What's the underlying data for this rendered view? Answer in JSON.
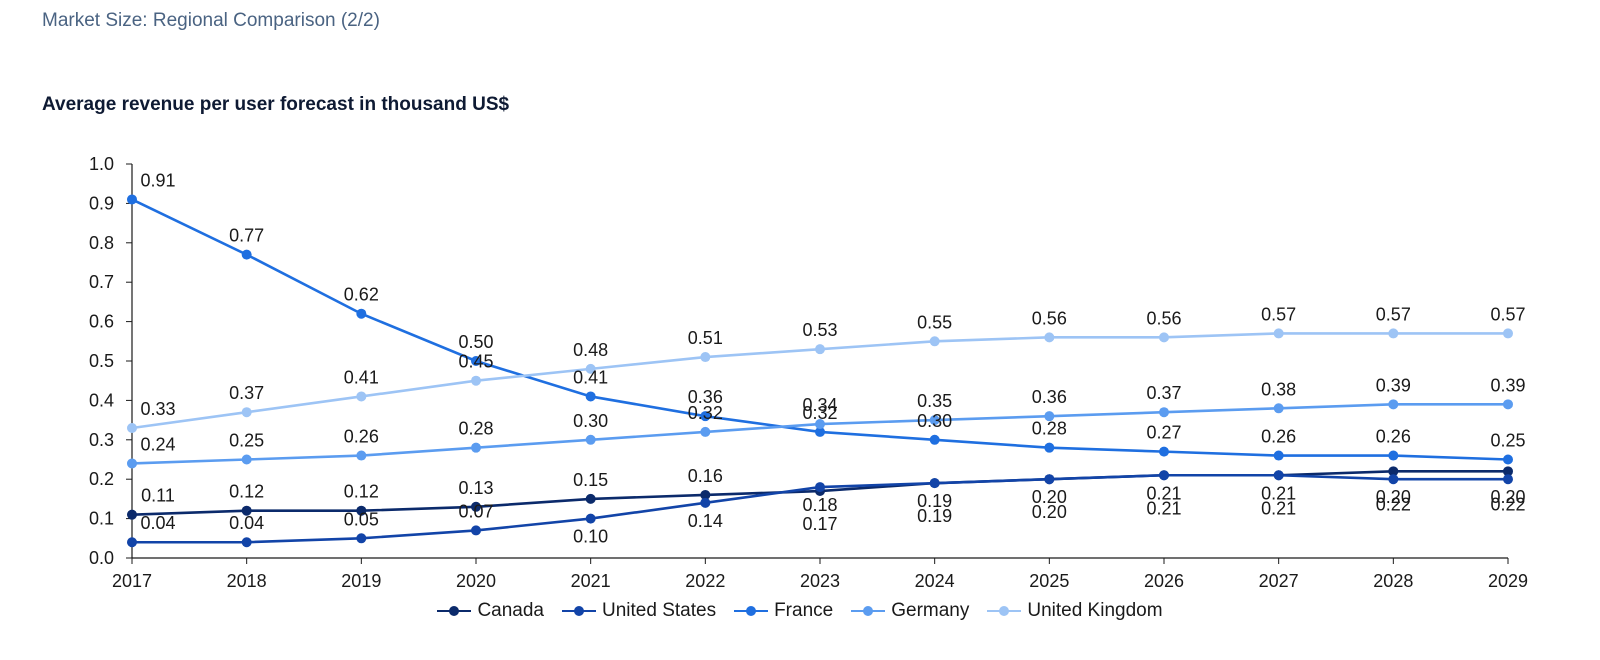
{
  "header": {
    "title": "Market Size: Regional Comparison (2/2)"
  },
  "chart_data": {
    "type": "line",
    "title": "Average revenue per user forecast in thousand US$",
    "xlabel": "",
    "ylabel": "",
    "x": [
      2017,
      2018,
      2019,
      2020,
      2021,
      2022,
      2023,
      2024,
      2025,
      2026,
      2027,
      2028,
      2029
    ],
    "ylim": [
      0,
      1.0
    ],
    "yticks": [
      "0.0",
      "0.1",
      "0.2",
      "0.3",
      "0.4",
      "0.5",
      "0.6",
      "0.7",
      "0.8",
      "0.9",
      "1.0"
    ],
    "grid": false,
    "legend_position": "bottom-center",
    "series": [
      {
        "name": "Canada",
        "color": "#0b2a6b",
        "values": [
          0.11,
          0.12,
          0.12,
          0.13,
          0.15,
          0.16,
          0.17,
          0.19,
          0.2,
          0.21,
          0.21,
          0.22,
          0.22
        ],
        "labels": [
          "0.11",
          "0.12",
          "0.12",
          "0.13",
          "0.15",
          "0.16",
          "0.17",
          "0.19",
          "0.20",
          "0.21",
          "0.21",
          "0.22",
          "0.22"
        ]
      },
      {
        "name": "United States",
        "color": "#1244a8",
        "values": [
          0.04,
          0.04,
          0.05,
          0.07,
          0.1,
          0.14,
          0.18,
          0.19,
          0.2,
          0.21,
          0.21,
          0.2,
          0.2
        ],
        "labels": [
          "0.04",
          "0.04",
          "0.05",
          "0.07",
          "0.10",
          "0.14",
          "0.18",
          "0.19",
          "0.20",
          "0.21",
          "0.21",
          "0.20",
          "0.20"
        ]
      },
      {
        "name": "France",
        "color": "#1f6fe0",
        "values": [
          0.91,
          0.77,
          0.62,
          0.5,
          0.41,
          0.36,
          0.32,
          0.3,
          0.28,
          0.27,
          0.26,
          0.26,
          0.25
        ],
        "labels": [
          "0.91",
          "0.77",
          "0.62",
          "0.50",
          "0.41",
          "0.36",
          "0.32",
          "0.30",
          "0.28",
          "0.27",
          "0.26",
          "0.26",
          "0.25"
        ]
      },
      {
        "name": "Germany",
        "color": "#5b9cf0",
        "values": [
          0.24,
          0.25,
          0.26,
          0.28,
          0.3,
          0.32,
          0.34,
          0.35,
          0.36,
          0.37,
          0.38,
          0.39,
          0.39
        ],
        "labels": [
          "0.24",
          "0.25",
          "0.26",
          "0.28",
          "0.30",
          "0.32",
          "0.34",
          "0.35",
          "0.36",
          "0.37",
          "0.38",
          "0.39",
          "0.39"
        ]
      },
      {
        "name": "United Kingdom",
        "color": "#9dc4f5",
        "values": [
          0.33,
          0.37,
          0.41,
          0.45,
          0.48,
          0.51,
          0.53,
          0.55,
          0.56,
          0.56,
          0.57,
          0.57,
          0.57
        ],
        "labels": [
          "0.33",
          "0.37",
          "0.41",
          "0.45",
          "0.48",
          "0.51",
          "0.53",
          "0.55",
          "0.56",
          "0.56",
          "0.57",
          "0.57",
          "0.57"
        ]
      }
    ]
  }
}
